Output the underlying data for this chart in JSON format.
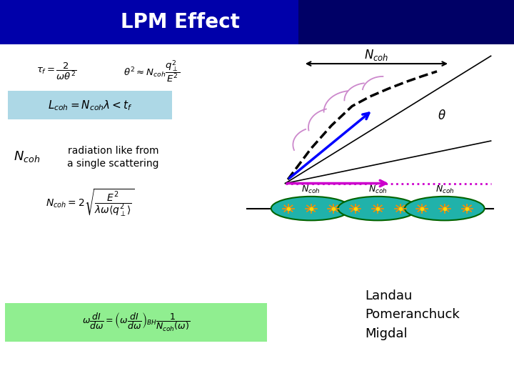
{
  "title": "LPM Effect",
  "title_bg_color": "#0000AA",
  "title_text_color": "#FFFFFF",
  "slide_bg_color": "#FFFFFF",
  "formula1": "$\\tau_f = \\dfrac{2}{\\omega\\theta^2}$",
  "formula2": "$\\theta^2 \\approx N_{coh} \\dfrac{q_\\perp^2}{E^2}$",
  "formula3_box_color": "#ADD8E6",
  "formula3": "$L_{coh} = N_{coh}\\lambda < t_f$",
  "ncoh_label": "$N_{coh}$",
  "radiation_text1": "radiation like from",
  "radiation_text2": "a single scattering",
  "formula4": "$N_{coh} = 2\\sqrt{\\dfrac{E^2}{\\lambda\\omega\\langle q_\\perp^2 \\rangle}}$",
  "formula5_box_color": "#90EE90",
  "formula5": "$\\omega \\dfrac{dI}{d\\omega} = \\left(\\omega \\dfrac{dI}{d\\omega}\\right)_{BH} \\dfrac{1}{N_{coh}(\\omega)}$",
  "lpm_text": "Landau\nPomeranchuck\nMigdal",
  "header_dark_color": "#00008B",
  "magenta_line_color": "#CC00CC",
  "blue_line_color": "#0000FF",
  "teal_ellipse_color": "#20B2AA",
  "ellipse_border_color": "#006400"
}
